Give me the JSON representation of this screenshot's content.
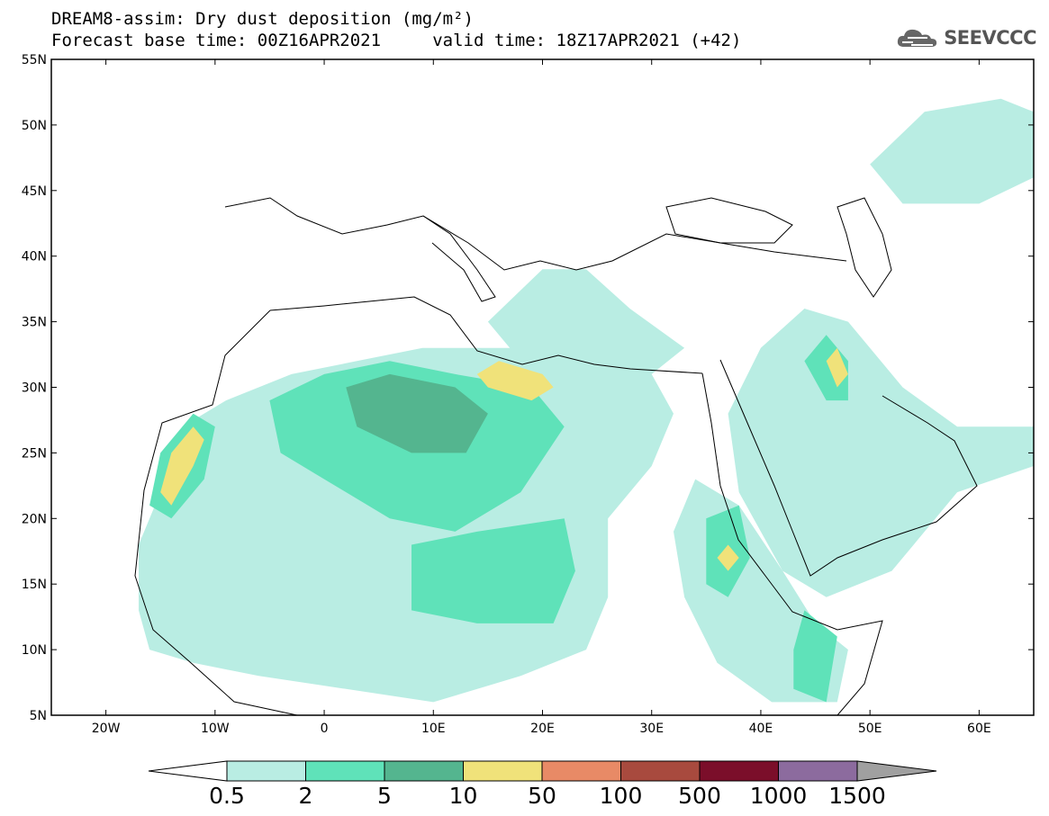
{
  "header": {
    "title_line1": "DREAM8-assim: Dry dust deposition (mg/m²)",
    "title_line2": "Forecast base time: 00Z16APR2021     valid time: 18Z17APR2021 (+42)",
    "logo_text": "SEEVCCC"
  },
  "map": {
    "lon_range": [
      -25,
      65
    ],
    "lat_range": [
      5,
      55
    ],
    "lon_ticks": [
      {
        "value": -20,
        "label": "20W"
      },
      {
        "value": -10,
        "label": "10W"
      },
      {
        "value": 0,
        "label": "0"
      },
      {
        "value": 10,
        "label": "10E"
      },
      {
        "value": 20,
        "label": "20E"
      },
      {
        "value": 30,
        "label": "30E"
      },
      {
        "value": 40,
        "label": "40E"
      },
      {
        "value": 50,
        "label": "50E"
      },
      {
        "value": 60,
        "label": "60E"
      }
    ],
    "lat_ticks": [
      {
        "value": 55,
        "label": "55N"
      },
      {
        "value": 50,
        "label": "50N"
      },
      {
        "value": 45,
        "label": "45N"
      },
      {
        "value": 40,
        "label": "40N"
      },
      {
        "value": 35,
        "label": "35N"
      },
      {
        "value": 30,
        "label": "30N"
      },
      {
        "value": 25,
        "label": "25N"
      },
      {
        "value": 20,
        "label": "20N"
      },
      {
        "value": 15,
        "label": "15N"
      },
      {
        "value": 10,
        "label": "10N"
      },
      {
        "value": 5,
        "label": "5N"
      }
    ]
  },
  "legend": {
    "colors": [
      "#b9ede3",
      "#5fe2b9",
      "#54b58f",
      "#f0e27a",
      "#e88a66",
      "#a84a3e",
      "#7b0e2a",
      "#8c6b9e"
    ],
    "labels": [
      "0.5",
      "2",
      "5",
      "10",
      "50",
      "100",
      "500",
      "1000",
      "1500"
    ],
    "under_color": "#ffffff",
    "over_color": "#a0a0a0"
  },
  "dust_regions": [
    {
      "level": 0,
      "name": "west-africa-sahara",
      "points": [
        [
          -17,
          13
        ],
        [
          -17,
          18
        ],
        [
          -15,
          22
        ],
        [
          -13,
          27
        ],
        [
          -9,
          29
        ],
        [
          -3,
          31
        ],
        [
          3,
          32
        ],
        [
          9,
          33
        ],
        [
          14,
          33
        ],
        [
          20,
          33
        ],
        [
          26,
          33
        ],
        [
          30,
          31
        ],
        [
          32,
          28
        ],
        [
          30,
          24
        ],
        [
          26,
          20
        ],
        [
          26,
          14
        ],
        [
          24,
          10
        ],
        [
          18,
          8
        ],
        [
          10,
          6
        ],
        [
          2,
          7
        ],
        [
          -6,
          8
        ],
        [
          -12,
          9
        ],
        [
          -16,
          10
        ]
      ]
    },
    {
      "level": 0,
      "name": "east-africa-red-sea",
      "points": [
        [
          34,
          23
        ],
        [
          38,
          21
        ],
        [
          42,
          16
        ],
        [
          45,
          12
        ],
        [
          48,
          10
        ],
        [
          47,
          6
        ],
        [
          41,
          6
        ],
        [
          36,
          9
        ],
        [
          33,
          14
        ],
        [
          32,
          19
        ]
      ]
    },
    {
      "level": 0,
      "name": "arabia-gulf",
      "points": [
        [
          40,
          33
        ],
        [
          44,
          36
        ],
        [
          48,
          35
        ],
        [
          53,
          30
        ],
        [
          58,
          27
        ],
        [
          65,
          27
        ],
        [
          65,
          24
        ],
        [
          58,
          22
        ],
        [
          54,
          18
        ],
        [
          52,
          16
        ],
        [
          46,
          14
        ],
        [
          42,
          16
        ],
        [
          38,
          22
        ],
        [
          37,
          28
        ]
      ]
    },
    {
      "level": 0,
      "name": "caspian-central-asia",
      "points": [
        [
          50,
          47
        ],
        [
          55,
          51
        ],
        [
          62,
          52
        ],
        [
          65,
          51
        ],
        [
          65,
          46
        ],
        [
          60,
          44
        ],
        [
          53,
          44
        ]
      ]
    },
    {
      "level": 0,
      "name": "mediterranean-aegean",
      "points": [
        [
          15,
          35
        ],
        [
          20,
          39
        ],
        [
          24,
          39
        ],
        [
          28,
          36
        ],
        [
          33,
          33
        ],
        [
          30,
          31
        ],
        [
          24,
          31
        ],
        [
          18,
          32
        ]
      ]
    },
    {
      "level": 1,
      "name": "central-sahara",
      "points": [
        [
          -5,
          29
        ],
        [
          0,
          31
        ],
        [
          6,
          32
        ],
        [
          12,
          31
        ],
        [
          19,
          30
        ],
        [
          22,
          27
        ],
        [
          18,
          22
        ],
        [
          12,
          19
        ],
        [
          6,
          20
        ],
        [
          0,
          23
        ],
        [
          -4,
          25
        ]
      ]
    },
    {
      "level": 1,
      "name": "morocco-coast",
      "points": [
        [
          -16,
          21
        ],
        [
          -15,
          25
        ],
        [
          -12,
          28
        ],
        [
          -10,
          27
        ],
        [
          -11,
          23
        ],
        [
          -14,
          20
        ]
      ]
    },
    {
      "level": 1,
      "name": "chad-sudan",
      "points": [
        [
          8,
          18
        ],
        [
          14,
          19
        ],
        [
          22,
          20
        ],
        [
          23,
          16
        ],
        [
          21,
          12
        ],
        [
          14,
          12
        ],
        [
          8,
          13
        ]
      ]
    },
    {
      "level": 1,
      "name": "horn-africa",
      "points": [
        [
          44,
          13
        ],
        [
          47,
          11
        ],
        [
          46,
          6
        ],
        [
          43,
          7
        ],
        [
          43,
          10
        ]
      ]
    },
    {
      "level": 1,
      "name": "iraq-kuwait",
      "points": [
        [
          44,
          32
        ],
        [
          46,
          34
        ],
        [
          48,
          32
        ],
        [
          48,
          29
        ],
        [
          46,
          29
        ]
      ]
    },
    {
      "level": 1,
      "name": "red-sea-west",
      "points": [
        [
          35,
          20
        ],
        [
          38,
          21
        ],
        [
          39,
          17
        ],
        [
          37,
          14
        ],
        [
          35,
          15
        ]
      ]
    },
    {
      "level": 2,
      "name": "libya-core",
      "points": [
        [
          2,
          30
        ],
        [
          6,
          31
        ],
        [
          12,
          30
        ],
        [
          15,
          28
        ],
        [
          13,
          25
        ],
        [
          8,
          25
        ],
        [
          3,
          27
        ]
      ]
    },
    {
      "level": 3,
      "name": "libya-coast-hot",
      "points": [
        [
          14,
          31
        ],
        [
          16,
          32
        ],
        [
          20,
          31
        ],
        [
          21,
          30
        ],
        [
          19,
          29
        ],
        [
          15,
          30
        ]
      ]
    },
    {
      "level": 3,
      "name": "morocco-hot",
      "points": [
        [
          -15,
          22
        ],
        [
          -14,
          25
        ],
        [
          -12,
          27
        ],
        [
          -11,
          26
        ],
        [
          -12,
          24
        ],
        [
          -14,
          21
        ]
      ]
    },
    {
      "level": 3,
      "name": "eritrea-hot",
      "points": [
        [
          36,
          17
        ],
        [
          37,
          18
        ],
        [
          38,
          17
        ],
        [
          37,
          16
        ]
      ]
    },
    {
      "level": 3,
      "name": "kuwait-hot",
      "points": [
        [
          46,
          32
        ],
        [
          47,
          33
        ],
        [
          48,
          31
        ],
        [
          47,
          30
        ]
      ]
    }
  ]
}
